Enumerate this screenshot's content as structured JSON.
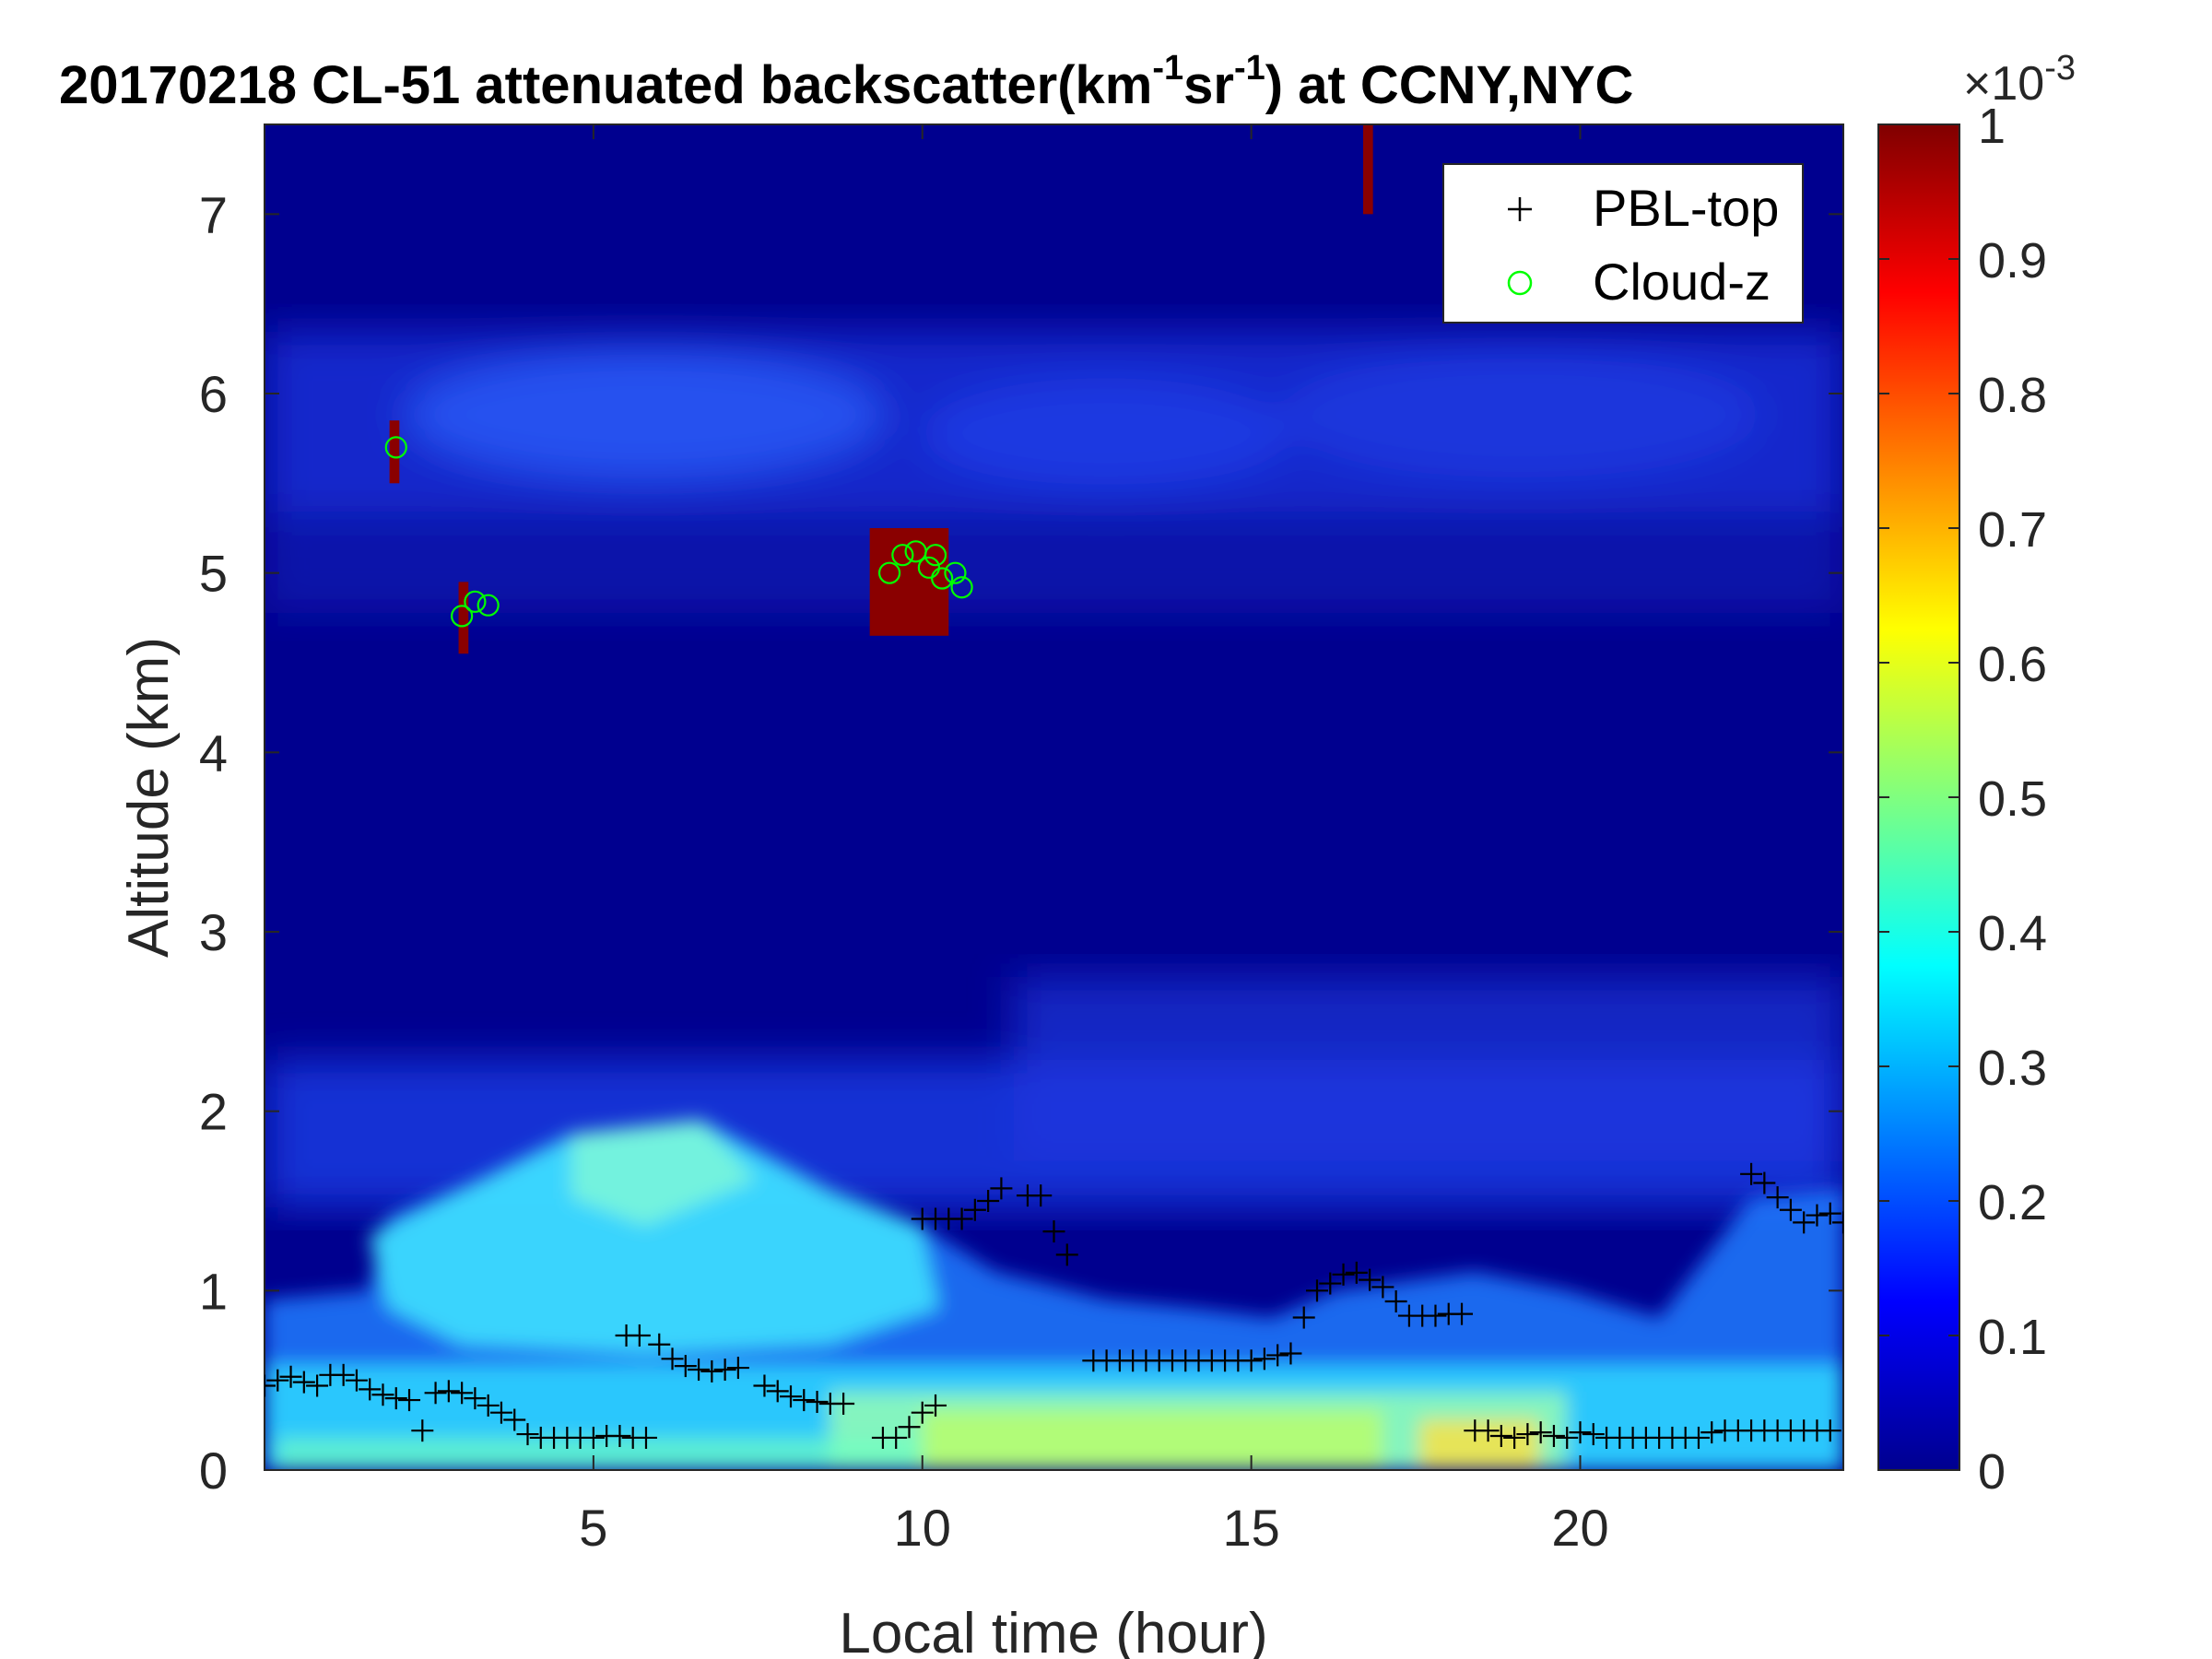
{
  "chart_data": {
    "type": "heatmap",
    "title_main": "20170218  CL-51 attenuated backscatter(km",
    "title_sup1": "-1",
    "title_mid": "sr",
    "title_sup2": "-1",
    "title_end": ") at CCNY,NYC",
    "xlabel": "Local time (hour)",
    "ylabel": "Altitude (km)",
    "xlim": [
      0,
      24
    ],
    "ylim": [
      0,
      7.5
    ],
    "xticks": [
      5,
      10,
      15,
      20
    ],
    "xtick_labels": [
      "5",
      "10",
      "15",
      "20"
    ],
    "yticks": [
      0,
      1,
      2,
      3,
      4,
      5,
      6,
      7
    ],
    "ytick_labels": [
      "0",
      "1",
      "2",
      "3",
      "4",
      "5",
      "6",
      "7"
    ],
    "colorbar": {
      "colormap": "jet",
      "range": [
        0,
        1
      ],
      "ticks": [
        0,
        0.1,
        0.2,
        0.3,
        0.4,
        0.5,
        0.6,
        0.7,
        0.8,
        0.9,
        1
      ],
      "tick_labels": [
        "0",
        "0.1",
        "0.2",
        "0.3",
        "0.4",
        "0.5",
        "0.6",
        "0.7",
        "0.8",
        "0.9",
        "1"
      ],
      "exponent_base": "×10",
      "exponent_power": "-3"
    },
    "legend": {
      "placement": "top-right",
      "entries": [
        {
          "label": "PBL-top",
          "marker": "+",
          "color": "#000000"
        },
        {
          "label": "Cloud-z",
          "marker": "o",
          "color": "#00ff00"
        }
      ]
    },
    "series": [
      {
        "name": "PBL-top",
        "points": [
          [
            0.0,
            0.47
          ],
          [
            0.2,
            0.5
          ],
          [
            0.4,
            0.52
          ],
          [
            0.6,
            0.49
          ],
          [
            0.8,
            0.47
          ],
          [
            1.0,
            0.53
          ],
          [
            1.2,
            0.53
          ],
          [
            1.4,
            0.5
          ],
          [
            1.6,
            0.45
          ],
          [
            1.8,
            0.42
          ],
          [
            2.0,
            0.4
          ],
          [
            2.2,
            0.39
          ],
          [
            2.4,
            0.22
          ],
          [
            2.6,
            0.43
          ],
          [
            2.8,
            0.44
          ],
          [
            3.0,
            0.43
          ],
          [
            3.2,
            0.4
          ],
          [
            3.4,
            0.36
          ],
          [
            3.6,
            0.32
          ],
          [
            3.8,
            0.28
          ],
          [
            4.0,
            0.2
          ],
          [
            4.2,
            0.18
          ],
          [
            4.4,
            0.18
          ],
          [
            4.6,
            0.18
          ],
          [
            4.8,
            0.18
          ],
          [
            5.0,
            0.18
          ],
          [
            5.2,
            0.19
          ],
          [
            5.4,
            0.19
          ],
          [
            5.6,
            0.18
          ],
          [
            5.8,
            0.18
          ],
          [
            5.5,
            0.75
          ],
          [
            5.7,
            0.75
          ],
          [
            6.0,
            0.7
          ],
          [
            6.2,
            0.62
          ],
          [
            6.4,
            0.58
          ],
          [
            6.6,
            0.56
          ],
          [
            6.8,
            0.55
          ],
          [
            7.0,
            0.56
          ],
          [
            7.2,
            0.57
          ],
          [
            7.6,
            0.47
          ],
          [
            7.8,
            0.44
          ],
          [
            8.0,
            0.41
          ],
          [
            8.2,
            0.39
          ],
          [
            8.4,
            0.38
          ],
          [
            8.6,
            0.37
          ],
          [
            8.8,
            0.37
          ],
          [
            9.4,
            0.18
          ],
          [
            9.6,
            0.18
          ],
          [
            9.8,
            0.24
          ],
          [
            10.0,
            0.32
          ],
          [
            10.2,
            0.36
          ],
          [
            10.0,
            1.4
          ],
          [
            10.2,
            1.4
          ],
          [
            10.4,
            1.4
          ],
          [
            10.6,
            1.4
          ],
          [
            10.8,
            1.45
          ],
          [
            11.0,
            1.5
          ],
          [
            11.2,
            1.57
          ],
          [
            11.6,
            1.53
          ],
          [
            11.8,
            1.53
          ],
          [
            12.0,
            1.33
          ],
          [
            12.2,
            1.2
          ],
          [
            12.6,
            0.61
          ],
          [
            12.8,
            0.61
          ],
          [
            13.0,
            0.61
          ],
          [
            13.2,
            0.61
          ],
          [
            13.4,
            0.61
          ],
          [
            13.6,
            0.61
          ],
          [
            13.8,
            0.61
          ],
          [
            14.0,
            0.61
          ],
          [
            14.2,
            0.61
          ],
          [
            14.4,
            0.61
          ],
          [
            14.6,
            0.61
          ],
          [
            14.8,
            0.61
          ],
          [
            15.0,
            0.61
          ],
          [
            15.2,
            0.62
          ],
          [
            15.4,
            0.64
          ],
          [
            15.6,
            0.65
          ],
          [
            15.8,
            0.85
          ],
          [
            16.0,
            1.0
          ],
          [
            16.2,
            1.04
          ],
          [
            16.4,
            1.09
          ],
          [
            16.6,
            1.1
          ],
          [
            16.8,
            1.06
          ],
          [
            17.0,
            1.02
          ],
          [
            17.2,
            0.94
          ],
          [
            17.4,
            0.86
          ],
          [
            17.6,
            0.86
          ],
          [
            17.8,
            0.86
          ],
          [
            18.0,
            0.87
          ],
          [
            18.2,
            0.87
          ],
          [
            18.4,
            0.22
          ],
          [
            18.6,
            0.22
          ],
          [
            18.8,
            0.19
          ],
          [
            19.0,
            0.18
          ],
          [
            19.2,
            0.2
          ],
          [
            19.4,
            0.21
          ],
          [
            19.6,
            0.19
          ],
          [
            19.8,
            0.18
          ],
          [
            20.0,
            0.21
          ],
          [
            20.2,
            0.2
          ],
          [
            20.4,
            0.18
          ],
          [
            20.6,
            0.18
          ],
          [
            20.8,
            0.18
          ],
          [
            21.0,
            0.18
          ],
          [
            21.2,
            0.18
          ],
          [
            21.4,
            0.18
          ],
          [
            21.6,
            0.18
          ],
          [
            21.8,
            0.18
          ],
          [
            22.0,
            0.21
          ],
          [
            22.2,
            0.22
          ],
          [
            22.4,
            0.22
          ],
          [
            22.6,
            0.22
          ],
          [
            22.8,
            0.22
          ],
          [
            23.0,
            0.22
          ],
          [
            23.2,
            0.22
          ],
          [
            23.4,
            0.22
          ],
          [
            23.6,
            0.22
          ],
          [
            23.8,
            0.22
          ],
          [
            22.6,
            1.65
          ],
          [
            22.8,
            1.6
          ],
          [
            23.0,
            1.52
          ],
          [
            23.2,
            1.45
          ],
          [
            23.4,
            1.38
          ],
          [
            23.6,
            1.42
          ],
          [
            23.8,
            1.43
          ],
          [
            24.0,
            1.38
          ]
        ]
      },
      {
        "name": "Cloud-z",
        "points": [
          [
            2.0,
            5.7
          ],
          [
            3.0,
            4.76
          ],
          [
            3.2,
            4.84
          ],
          [
            3.4,
            4.82
          ],
          [
            9.5,
            5.0
          ],
          [
            9.7,
            5.1
          ],
          [
            9.9,
            5.12
          ],
          [
            10.1,
            5.03
          ],
          [
            10.2,
            5.1
          ],
          [
            10.3,
            4.97
          ],
          [
            10.5,
            5.0
          ],
          [
            10.6,
            4.92
          ]
        ]
      }
    ],
    "clouds": [
      {
        "x0": 1.9,
        "x1": 2.05,
        "y0": 5.5,
        "y1": 5.85
      },
      {
        "x0": 2.95,
        "x1": 3.1,
        "y0": 4.55,
        "y1": 4.95
      },
      {
        "x0": 9.2,
        "x1": 10.4,
        "y0": 4.65,
        "y1": 5.25
      },
      {
        "x0": 16.7,
        "x1": 16.85,
        "y0": 7.0,
        "y1": 7.5
      }
    ]
  }
}
